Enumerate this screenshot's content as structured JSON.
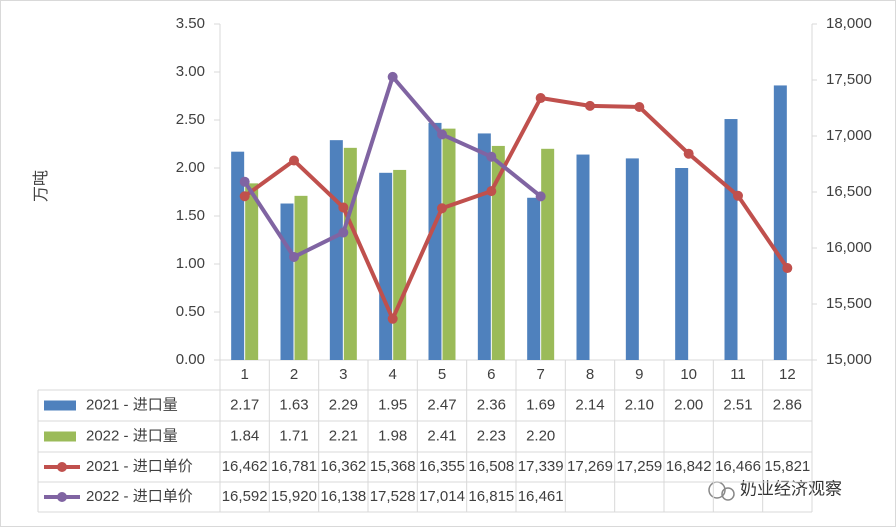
{
  "chart_data": {
    "type": "bar",
    "y_axis_label": "万吨",
    "categories": [
      "1",
      "2",
      "3",
      "4",
      "5",
      "6",
      "7",
      "8",
      "9",
      "10",
      "11",
      "12"
    ],
    "ylim": [
      0,
      3.5
    ],
    "yticks": [
      {
        "value": 0,
        "label": "0.00"
      },
      {
        "value": 0.5,
        "label": "0.50"
      },
      {
        "value": 1,
        "label": "1.00"
      },
      {
        "value": 1.5,
        "label": "1.50"
      },
      {
        "value": 2,
        "label": "2.00"
      },
      {
        "value": 2.5,
        "label": "2.50"
      },
      {
        "value": 3,
        "label": "3.00"
      },
      {
        "value": 3.5,
        "label": "3.50"
      }
    ],
    "y2lim": [
      15000,
      18000
    ],
    "y2ticks": [
      {
        "value": 15000,
        "label": "15,000"
      },
      {
        "value": 15500,
        "label": "15,500"
      },
      {
        "value": 16000,
        "label": "16,000"
      },
      {
        "value": 16500,
        "label": "16,500"
      },
      {
        "value": 17000,
        "label": "17,000"
      },
      {
        "value": 17500,
        "label": "17,500"
      },
      {
        "value": 18000,
        "label": "18,000"
      }
    ],
    "series": [
      {
        "name": "2021 - 进口量",
        "type": "bar",
        "color": "#4f81bd",
        "values": [
          2.17,
          1.63,
          2.29,
          1.95,
          2.47,
          2.36,
          1.69,
          2.14,
          2.1,
          2.0,
          2.51,
          2.86
        ],
        "value_labels": [
          "2.17",
          "1.63",
          "2.29",
          "1.95",
          "2.47",
          "2.36",
          "1.69",
          "2.14",
          "2.10",
          "2.00",
          "2.51",
          "2.86"
        ]
      },
      {
        "name": "2022 - 进口量",
        "type": "bar",
        "color": "#9bbb59",
        "values": [
          1.84,
          1.71,
          2.21,
          1.98,
          2.41,
          2.23,
          2.2,
          null,
          null,
          null,
          null,
          null
        ],
        "value_labels": [
          "1.84",
          "1.71",
          "2.21",
          "1.98",
          "2.41",
          "2.23",
          "2.20",
          null,
          null,
          null,
          null,
          null
        ]
      },
      {
        "name": "2021 - 进口单价",
        "type": "line",
        "axis": "y2",
        "color": "#c0504d",
        "values": [
          16462,
          16781,
          16362,
          15368,
          16355,
          16508,
          17339,
          17269,
          17259,
          16842,
          16466,
          15821
        ],
        "value_labels": [
          "16,462",
          "16,781",
          "16,362",
          "15,368",
          "16,355",
          "16,508",
          "17,339",
          "17,269",
          "17,259",
          "16,842",
          "16,466",
          "15,821"
        ]
      },
      {
        "name": "2022 - 进口单价",
        "type": "line",
        "axis": "y2",
        "color": "#8064a2",
        "values": [
          16592,
          15920,
          16138,
          17528,
          17014,
          16815,
          16461,
          null,
          null,
          null,
          null,
          null
        ],
        "value_labels": [
          "16,592",
          "15,920",
          "16,138",
          "17,528",
          "17,014",
          "16,815",
          "16,461",
          null,
          null,
          null,
          null,
          null
        ]
      }
    ]
  },
  "watermark": "奶业经济观察"
}
